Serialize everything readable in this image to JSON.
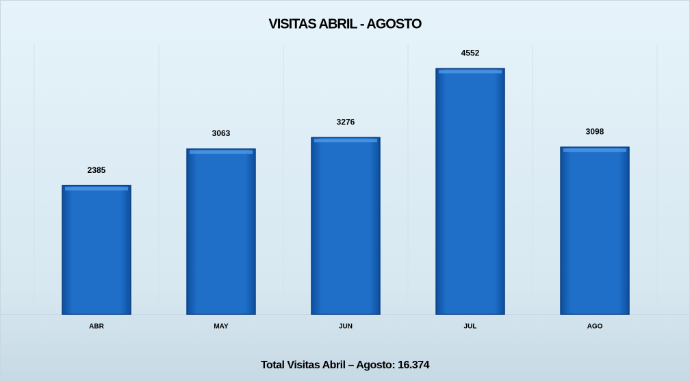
{
  "chart_data": {
    "type": "bar",
    "title": "VISITAS ABRIL - AGOSTO",
    "categories": [
      "ABR",
      "MAY",
      "JUN",
      "JUL",
      "AGO"
    ],
    "values": [
      2385,
      3063,
      3276,
      4552,
      3098
    ],
    "color": "#1f6fc9",
    "ylim": [
      0,
      5000
    ],
    "annotation": "Total Visitas Abril – Agosto: 16.374"
  }
}
